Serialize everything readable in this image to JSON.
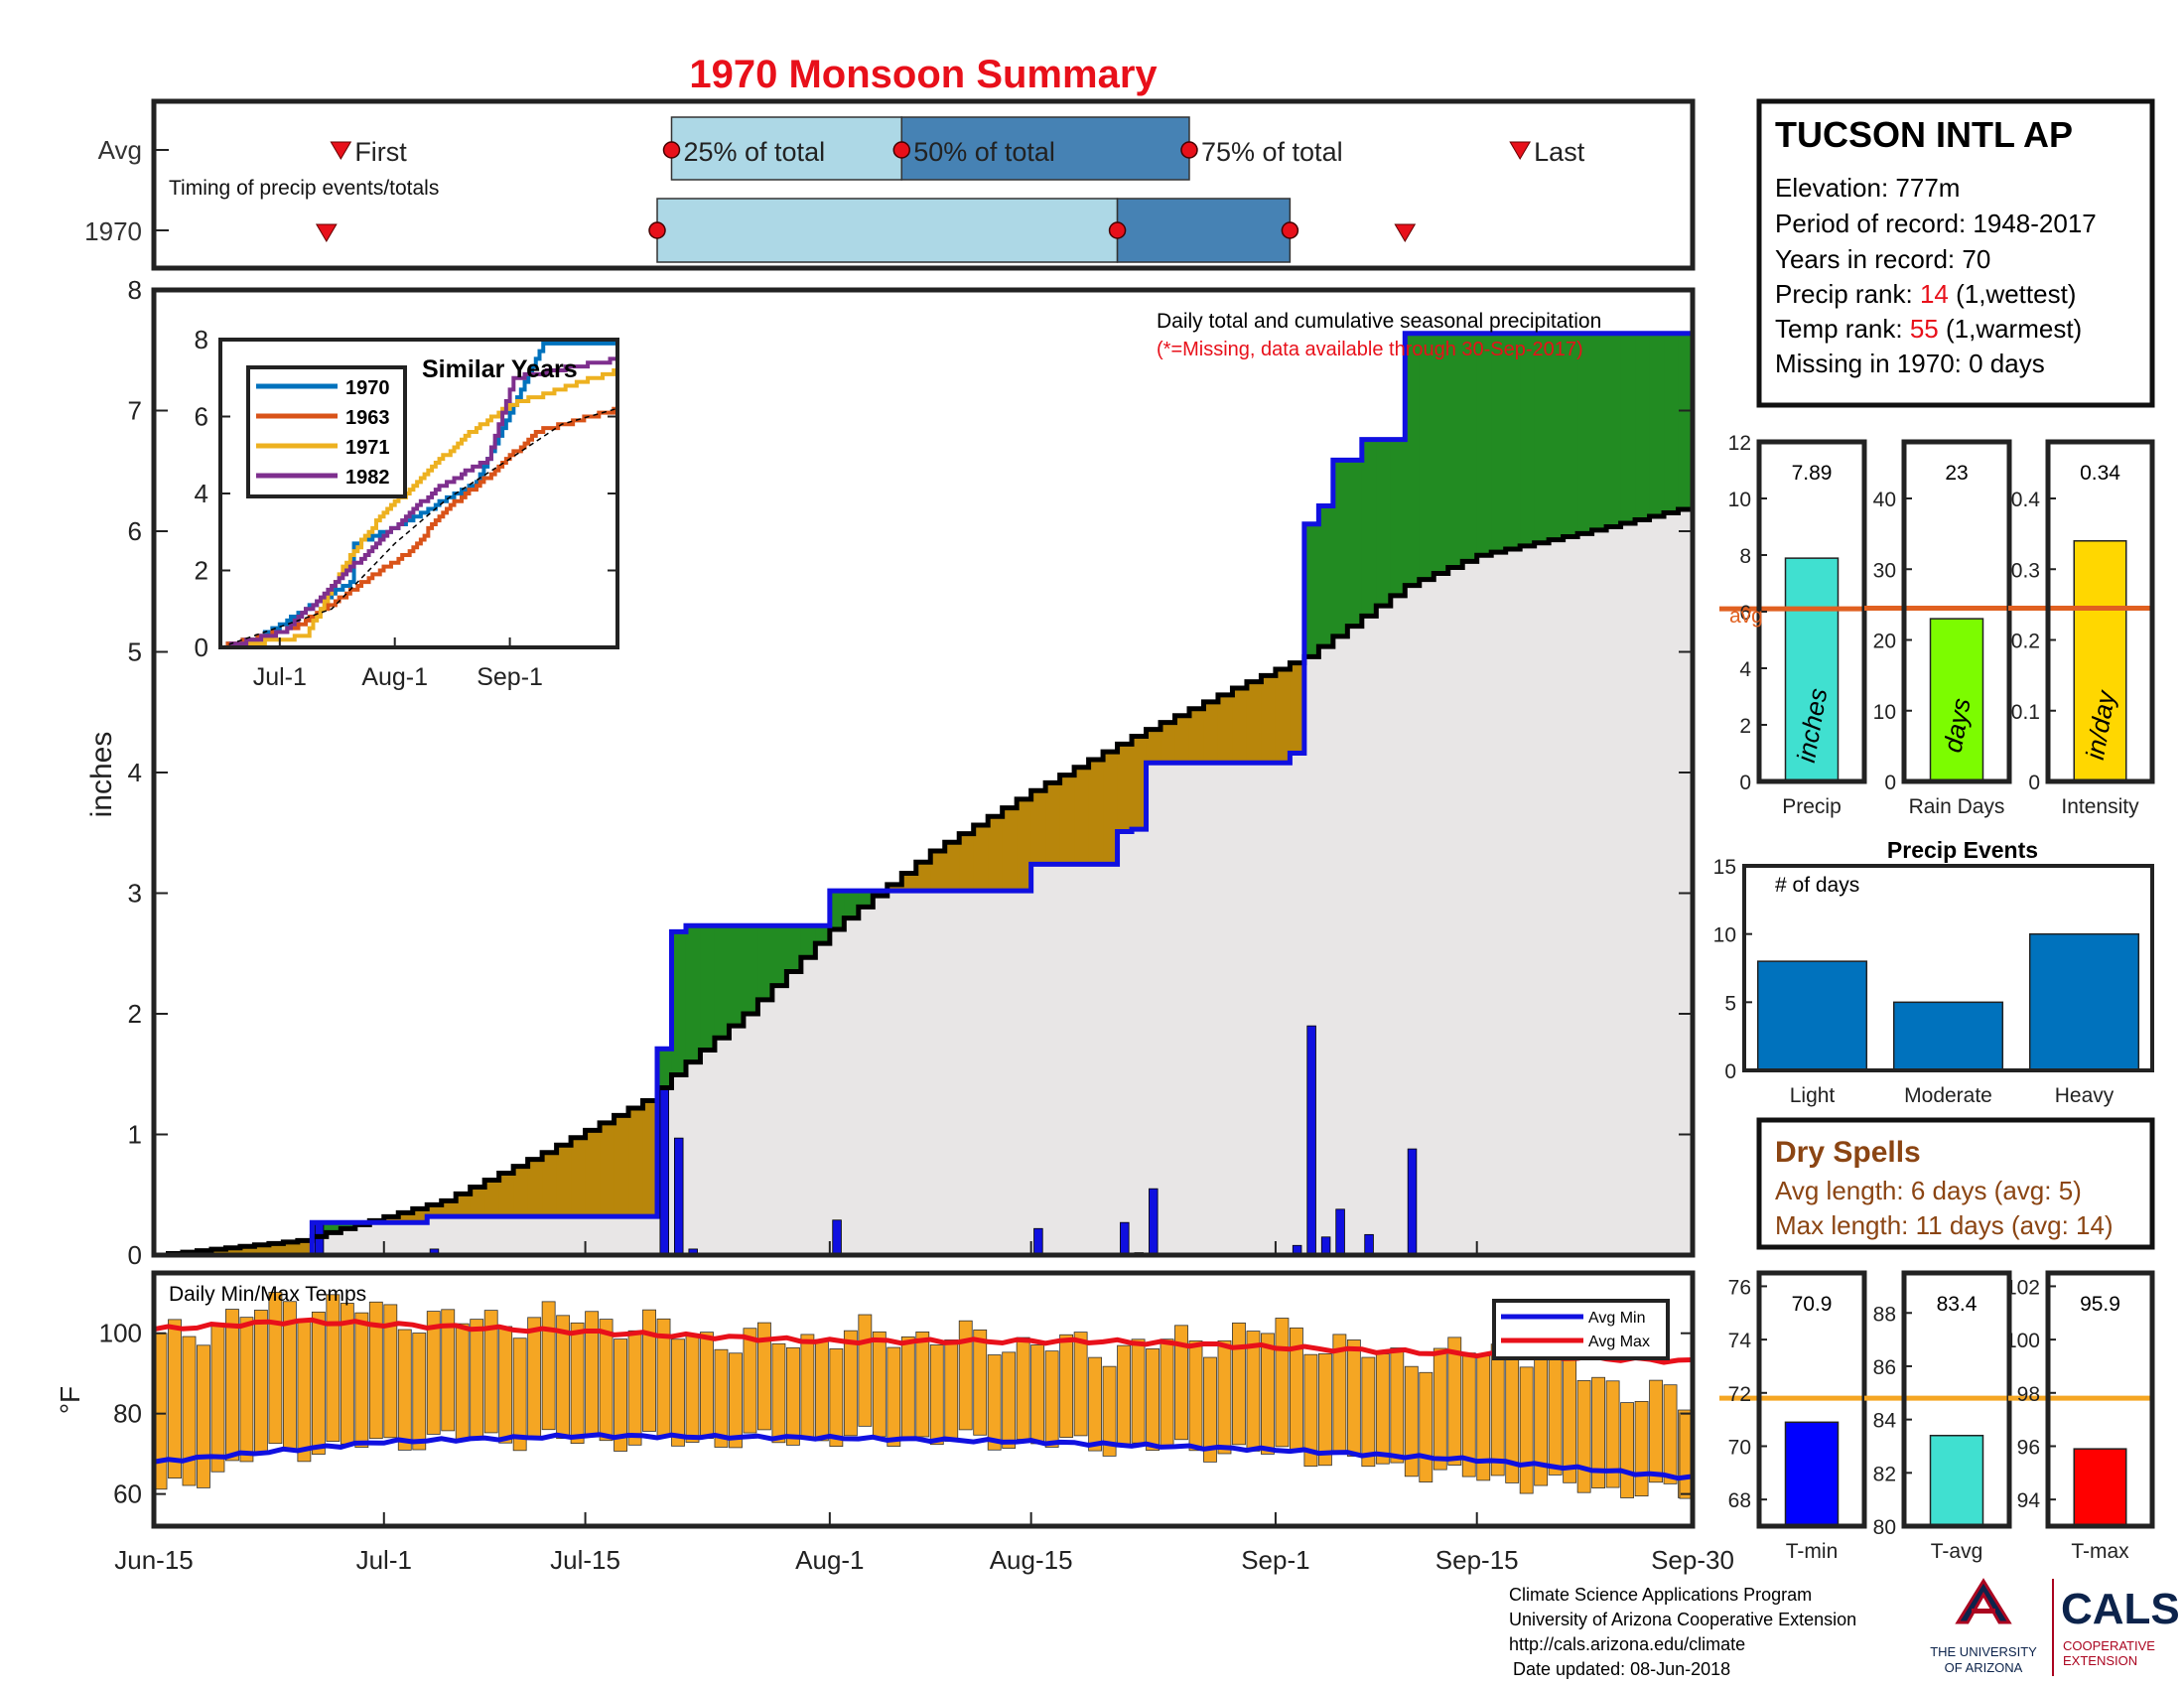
{
  "title": "1970 Monsoon Summary",
  "timing": {
    "row_avg": "Avg",
    "row_year": "1970",
    "caption": "Timing of precip events/totals",
    "first_label": "First",
    "last_label": "Last",
    "p25_label": "25% of total",
    "p50_label": "50% of total",
    "p75_label": "75% of total",
    "avg": {
      "first": "2019-06-28",
      "p25": "2019-07-21",
      "p50": "2019-08-06",
      "p75": "2019-08-26",
      "last": "2019-09-18"
    },
    "year": {
      "first": "2019-06-27",
      "p25": "2019-07-20",
      "p50": "2019-08-21",
      "p75": "2019-09-02",
      "last": "2019-09-10"
    }
  },
  "station": {
    "name": "TUCSON INTL AP",
    "elevation_line": "Elevation: 777m",
    "period_line": "Period of record: 1948-2017",
    "years_line": "Years in record: 70",
    "precip_rank_prefix": "Precip rank: ",
    "precip_rank_value": "14",
    "precip_rank_suffix": " (1,wettest)",
    "temp_rank_prefix": "Temp rank: ",
    "temp_rank_value": "55",
    "temp_rank_suffix": " (1,warmest)",
    "missing_line": "Missing in 1970: 0 days"
  },
  "main_chart": {
    "note_line1": "Daily total and cumulative seasonal precipitation",
    "note_line2": "(*=Missing, data available through 30-Sep-2017)",
    "ylabel": "inches",
    "yticks": [
      "0",
      "1",
      "2",
      "3",
      "4",
      "5",
      "6",
      "7",
      "8"
    ],
    "xticks": [
      "Jun-15",
      "Jul-1",
      "Jul-15",
      "Aug-1",
      "Aug-15",
      "Sep-1",
      "Sep-15",
      "Sep-30"
    ]
  },
  "inset": {
    "title": "Similar Years",
    "yticks": [
      "0",
      "2",
      "4",
      "6",
      "8"
    ],
    "xticks": [
      "Jul-1",
      "Aug-1",
      "Sep-1"
    ],
    "legend": [
      "1970",
      "1963",
      "1971",
      "1982"
    ]
  },
  "small_bars": {
    "precip": {
      "xlabel": "Precip",
      "value_text": "7.89",
      "unit": "inches",
      "avg_label": "avg",
      "yticks": [
        "0",
        "2",
        "4",
        "6",
        "8",
        "10",
        "12"
      ]
    },
    "rain_days": {
      "xlabel": "Rain Days",
      "value_text": "23",
      "unit": "days",
      "yticks": [
        "0",
        "10",
        "20",
        "30",
        "40"
      ]
    },
    "intensity": {
      "xlabel": "Intensity",
      "value_text": "0.34",
      "unit": "in/day",
      "yticks": [
        "0",
        "0.1",
        "0.2",
        "0.3",
        "0.4"
      ]
    }
  },
  "events": {
    "title": "Precip Events",
    "sublabel": "# of days",
    "yticks": [
      "0",
      "5",
      "10",
      "15"
    ]
  },
  "dry_spells": {
    "title": "Dry Spells",
    "avg_line": "Avg length: 6 days (avg: 5)",
    "max_line": "Max length: 11 days (avg: 14)"
  },
  "temps": {
    "label": "Daily Min/Max Temps",
    "ylabel": "°F",
    "yticks": [
      "60",
      "80",
      "100"
    ],
    "legend_min": "Avg Min",
    "legend_max": "Avg Max"
  },
  "temp_bars": {
    "tmin": {
      "xlabel": "T-min",
      "value_text": "70.9",
      "yticks": [
        "68",
        "70",
        "72",
        "74",
        "76"
      ]
    },
    "tavg": {
      "xlabel": "T-avg",
      "value_text": "83.4",
      "yticks": [
        "80",
        "82",
        "84",
        "86",
        "88"
      ]
    },
    "tmax": {
      "xlabel": "T-max",
      "value_text": "95.9",
      "yticks": [
        "94",
        "96",
        "98",
        "100",
        "102"
      ]
    }
  },
  "footer": {
    "line1": "Climate Science Applications Program",
    "line2": "University of Arizona Cooperative Extension",
    "line3": "http://cals.arizona.edu/climate",
    "line4": "Date updated: 08-Jun-2018",
    "logo_text": "THE UNIVERSITY OF ARIZONA",
    "cals_text": "CALS COOPERATIVE EXTENSION"
  },
  "colors": {
    "title": "#e8101a",
    "year_line": "#1010e0",
    "surplus": "#228b22",
    "deficit": "#b8860b",
    "avg_fill": "#e8e6e6",
    "bar": "#1010e0",
    "temp_bar": "#f5a623",
    "avg_line": "#e06020",
    "brown_text": "#8b4513"
  },
  "chart_data": [
    {
      "id": "cumulative",
      "type": "area",
      "x_start": "2019-06-15",
      "days": 108,
      "ylim": [
        0,
        8
      ],
      "daily_1970": [
        {
          "date": "2019-06-26",
          "value": 0.27
        },
        {
          "date": "2019-07-04",
          "value": 0.05
        },
        {
          "date": "2019-07-20",
          "value": 1.39
        },
        {
          "date": "2019-07-21",
          "value": 0.97
        },
        {
          "date": "2019-07-22",
          "value": 0.05
        },
        {
          "date": "2019-08-01",
          "value": 0.29
        },
        {
          "date": "2019-08-15",
          "value": 0.22
        },
        {
          "date": "2019-08-21",
          "value": 0.27
        },
        {
          "date": "2019-08-22",
          "value": 0.02
        },
        {
          "date": "2019-08-23",
          "value": 0.55
        },
        {
          "date": "2019-09-02",
          "value": 0.08
        },
        {
          "date": "2019-09-03",
          "value": 1.9
        },
        {
          "date": "2019-09-04",
          "value": 0.15
        },
        {
          "date": "2019-09-05",
          "value": 0.38
        },
        {
          "date": "2019-09-07",
          "value": 0.17
        },
        {
          "date": "2019-09-10",
          "value": 0.88
        }
      ],
      "avg_cumulative": [
        {
          "date": "2019-06-15",
          "value": 0.0
        },
        {
          "date": "2019-06-25",
          "value": 0.12
        },
        {
          "date": "2019-07-05",
          "value": 0.45
        },
        {
          "date": "2019-07-12",
          "value": 0.85
        },
        {
          "date": "2019-07-19",
          "value": 1.28
        },
        {
          "date": "2019-07-22",
          "value": 1.6
        },
        {
          "date": "2019-07-26",
          "value": 2.0
        },
        {
          "date": "2019-08-01",
          "value": 2.7
        },
        {
          "date": "2019-08-08",
          "value": 3.35
        },
        {
          "date": "2019-08-15",
          "value": 3.85
        },
        {
          "date": "2019-08-22",
          "value": 4.3
        },
        {
          "date": "2019-08-29",
          "value": 4.7
        },
        {
          "date": "2019-09-03",
          "value": 4.96
        },
        {
          "date": "2019-09-10",
          "value": 5.55
        },
        {
          "date": "2019-09-15",
          "value": 5.8
        },
        {
          "date": "2019-09-22",
          "value": 5.98
        },
        {
          "date": "2019-09-30",
          "value": 6.21
        }
      ]
    },
    {
      "id": "similar_years",
      "type": "line",
      "ylim": [
        0,
        8
      ],
      "series": [
        {
          "name": "1970",
          "color": "#0072bd",
          "points": [
            {
              "date": "2019-06-15",
              "value": 0
            },
            {
              "date": "2019-06-26",
              "value": 0.3
            },
            {
              "date": "2019-07-20",
              "value": 1.7
            },
            {
              "date": "2019-07-21",
              "value": 2.7
            },
            {
              "date": "2019-08-01",
              "value": 3.1
            },
            {
              "date": "2019-08-23",
              "value": 4.3
            },
            {
              "date": "2019-09-03",
              "value": 6.5
            },
            {
              "date": "2019-09-10",
              "value": 7.89
            },
            {
              "date": "2019-09-30",
              "value": 7.89
            }
          ]
        },
        {
          "name": "1963",
          "color": "#d95319",
          "points": [
            {
              "date": "2019-06-15",
              "value": 0
            },
            {
              "date": "2019-07-05",
              "value": 0.5
            },
            {
              "date": "2019-07-22",
              "value": 1.6
            },
            {
              "date": "2019-08-05",
              "value": 2.5
            },
            {
              "date": "2019-08-15",
              "value": 3.6
            },
            {
              "date": "2019-08-28",
              "value": 4.6
            },
            {
              "date": "2019-09-08",
              "value": 5.6
            },
            {
              "date": "2019-09-30",
              "value": 6.2
            }
          ]
        },
        {
          "name": "1971",
          "color": "#edb120",
          "points": [
            {
              "date": "2019-06-15",
              "value": 0
            },
            {
              "date": "2019-07-08",
              "value": 0.3
            },
            {
              "date": "2019-07-18",
              "value": 2.1
            },
            {
              "date": "2019-07-28",
              "value": 3.4
            },
            {
              "date": "2019-08-08",
              "value": 4.4
            },
            {
              "date": "2019-08-20",
              "value": 5.5
            },
            {
              "date": "2019-09-01",
              "value": 6.3
            },
            {
              "date": "2019-09-30",
              "value": 7.2
            }
          ]
        },
        {
          "name": "1982",
          "color": "#7e2f8e",
          "points": [
            {
              "date": "2019-06-15",
              "value": 0
            },
            {
              "date": "2019-07-02",
              "value": 0.4
            },
            {
              "date": "2019-07-15",
              "value": 1.6
            },
            {
              "date": "2019-07-28",
              "value": 2.8
            },
            {
              "date": "2019-08-12",
              "value": 4.1
            },
            {
              "date": "2019-08-26",
              "value": 4.9
            },
            {
              "date": "2019-09-02",
              "value": 7.0
            },
            {
              "date": "2019-09-30",
              "value": 7.5
            }
          ]
        },
        {
          "name": "",
          "color": "#000000",
          "dash": true,
          "points": [
            {
              "date": "2019-06-15",
              "value": 0
            },
            {
              "date": "2019-07-15",
              "value": 1.0
            },
            {
              "date": "2019-08-01",
              "value": 2.7
            },
            {
              "date": "2019-08-15",
              "value": 3.85
            },
            {
              "date": "2019-09-01",
              "value": 4.9
            },
            {
              "date": "2019-09-15",
              "value": 5.8
            },
            {
              "date": "2019-09-30",
              "value": 6.21
            }
          ]
        }
      ]
    },
    {
      "id": "seasonal_bars",
      "type": "bar",
      "categories": [
        "Precip",
        "Rain Days",
        "Intensity"
      ],
      "values": [
        7.89,
        23,
        0.34
      ],
      "averages": [
        6.1,
        24.5,
        0.245
      ],
      "ylims": [
        [
          0,
          12
        ],
        [
          0,
          48
        ],
        [
          0,
          0.48
        ]
      ],
      "colors": [
        "#40e0d0",
        "#7cfc00",
        "#ffd700"
      ]
    },
    {
      "id": "precip_events",
      "type": "bar",
      "categories": [
        "Light",
        "Moderate",
        "Heavy"
      ],
      "values": [
        8,
        5,
        10
      ],
      "ylim": [
        0,
        15
      ]
    },
    {
      "id": "daily_temps",
      "type": "bar",
      "ylim": [
        52,
        115
      ],
      "min_anchors": [
        {
          "date": "2019-06-15",
          "value": 60
        },
        {
          "date": "2019-06-22",
          "value": 70
        },
        {
          "date": "2019-07-05",
          "value": 74
        },
        {
          "date": "2019-07-20",
          "value": 73
        },
        {
          "date": "2019-08-05",
          "value": 74
        },
        {
          "date": "2019-08-20",
          "value": 72
        },
        {
          "date": "2019-09-02",
          "value": 70
        },
        {
          "date": "2019-09-10",
          "value": 66
        },
        {
          "date": "2019-09-20",
          "value": 62
        },
        {
          "date": "2019-09-30",
          "value": 60
        }
      ],
      "max_anchors": [
        {
          "date": "2019-06-15",
          "value": 98
        },
        {
          "date": "2019-06-20",
          "value": 104
        },
        {
          "date": "2019-06-25",
          "value": 108
        },
        {
          "date": "2019-07-05",
          "value": 103
        },
        {
          "date": "2019-07-15",
          "value": 104
        },
        {
          "date": "2019-07-25",
          "value": 98
        },
        {
          "date": "2019-08-05",
          "value": 100
        },
        {
          "date": "2019-08-20",
          "value": 96
        },
        {
          "date": "2019-09-01",
          "value": 101
        },
        {
          "date": "2019-09-08",
          "value": 94
        },
        {
          "date": "2019-09-18",
          "value": 96
        },
        {
          "date": "2019-09-25",
          "value": 86
        },
        {
          "date": "2019-09-30",
          "value": 82
        }
      ],
      "avg_min": [
        {
          "date": "2019-06-15",
          "value": 68
        },
        {
          "date": "2019-07-01",
          "value": 73
        },
        {
          "date": "2019-07-15",
          "value": 74.5
        },
        {
          "date": "2019-08-01",
          "value": 74
        },
        {
          "date": "2019-08-15",
          "value": 73
        },
        {
          "date": "2019-09-01",
          "value": 71
        },
        {
          "date": "2019-09-15",
          "value": 68.5
        },
        {
          "date": "2019-09-30",
          "value": 64
        }
      ],
      "avg_max": [
        {
          "date": "2019-06-15",
          "value": 101
        },
        {
          "date": "2019-06-25",
          "value": 103
        },
        {
          "date": "2019-07-10",
          "value": 101
        },
        {
          "date": "2019-08-01",
          "value": 98
        },
        {
          "date": "2019-08-20",
          "value": 98
        },
        {
          "date": "2019-09-05",
          "value": 96
        },
        {
          "date": "2019-09-30",
          "value": 93
        }
      ]
    },
    {
      "id": "temp_bars",
      "type": "bar",
      "categories": [
        "T-min",
        "T-avg",
        "T-max"
      ],
      "values": [
        70.9,
        83.4,
        95.9
      ],
      "averages": [
        71.8,
        84.8,
        97.8
      ],
      "ylims": [
        [
          67,
          76.5
        ],
        [
          80,
          89.5
        ],
        [
          93,
          102.5
        ]
      ],
      "colors": [
        "#0000ff",
        "#40e0d0",
        "#ff0000"
      ]
    }
  ]
}
